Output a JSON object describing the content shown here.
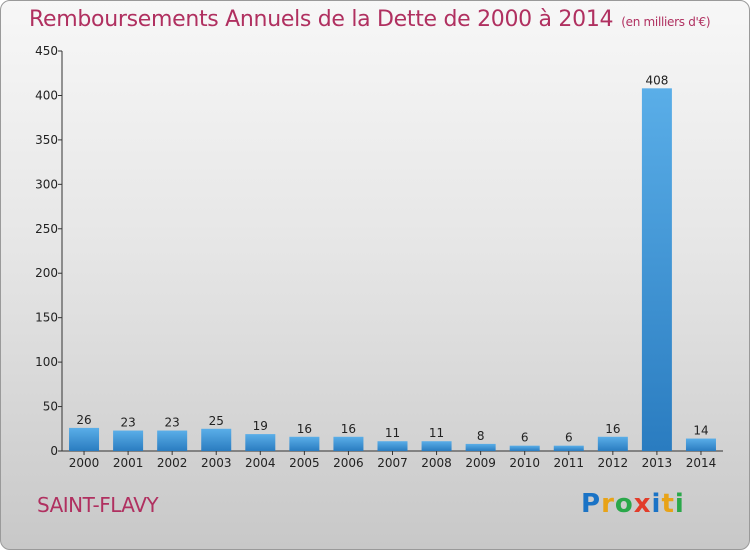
{
  "title": "Remboursements Annuels de la Dette de 2000 à 2014",
  "unit": "(en milliers d'€)",
  "city": "SAINT-FLAVY",
  "logo": [
    "P",
    "r",
    "o",
    "x",
    "i",
    "t",
    "i"
  ],
  "colors": {
    "title": "#b03060",
    "bar_light": "#5aaee8",
    "bar_dark": "#2a7cc0"
  },
  "chart_data": {
    "type": "bar",
    "title": "Remboursements Annuels de la Dette de 2000 à 2014",
    "xlabel": "",
    "ylabel": "",
    "categories": [
      "2000",
      "2001",
      "2002",
      "2003",
      "2004",
      "2005",
      "2006",
      "2007",
      "2008",
      "2009",
      "2010",
      "2011",
      "2012",
      "2013",
      "2014"
    ],
    "values": [
      26,
      23,
      23,
      25,
      19,
      16,
      16,
      11,
      11,
      8,
      6,
      6,
      16,
      408,
      14
    ],
    "ylim": [
      0,
      450
    ],
    "yticks": [
      0,
      50,
      100,
      150,
      200,
      250,
      300,
      350,
      400,
      450
    ],
    "grid": false,
    "legend": "none"
  }
}
